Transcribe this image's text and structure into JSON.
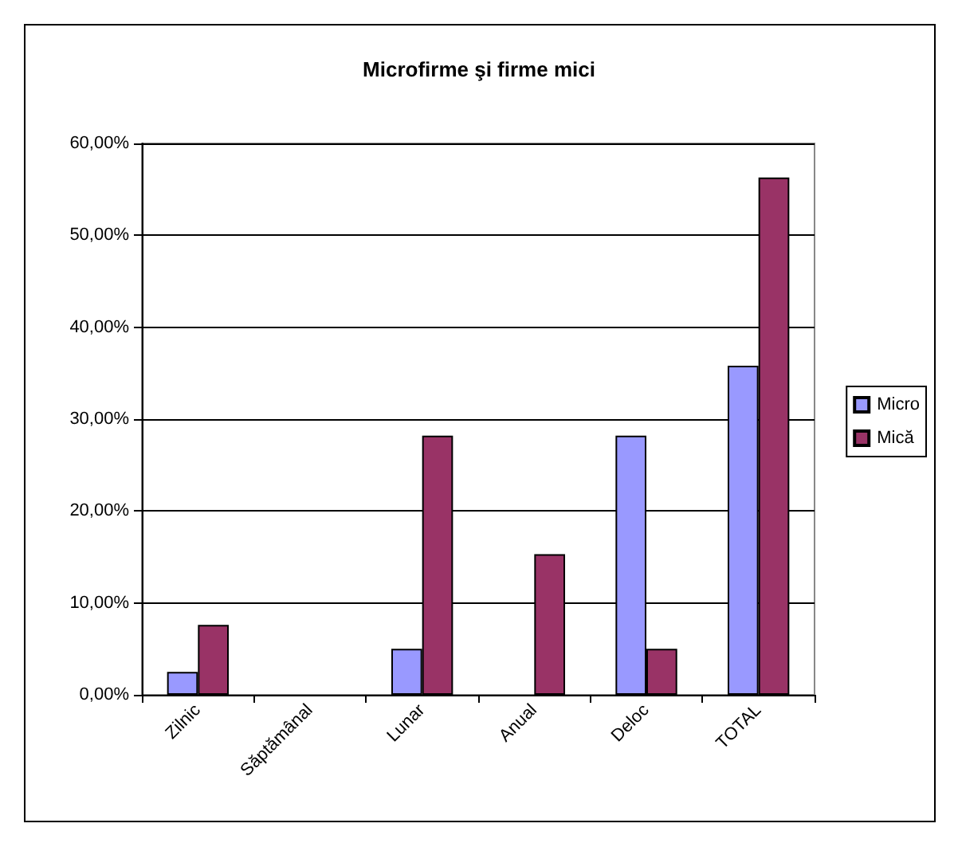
{
  "chart_data": {
    "type": "bar",
    "title": "Microfirme şi firme mici",
    "categories": [
      "Zilnic",
      "Săptămânal",
      "Lunar",
      "Anual",
      "Deloc",
      "TOTAL"
    ],
    "series": [
      {
        "name": "Micro",
        "color": "#9999ff",
        "values": [
          2.5,
          0,
          5.0,
          0,
          28.2,
          35.8
        ]
      },
      {
        "name": "Mică",
        "color": "#993366",
        "values": [
          7.6,
          0,
          28.2,
          15.3,
          5.0,
          56.3
        ]
      }
    ],
    "ylim": [
      0,
      60
    ],
    "yticks": [
      {
        "value": 0,
        "label": "0,00%"
      },
      {
        "value": 10,
        "label": "10,00%"
      },
      {
        "value": 20,
        "label": "20,00%"
      },
      {
        "value": 30,
        "label": "30,00%"
      },
      {
        "value": 40,
        "label": "40,00%"
      },
      {
        "value": 50,
        "label": "50,00%"
      },
      {
        "value": 60,
        "label": "60,00%"
      }
    ],
    "grid": "y",
    "legend": "right"
  }
}
